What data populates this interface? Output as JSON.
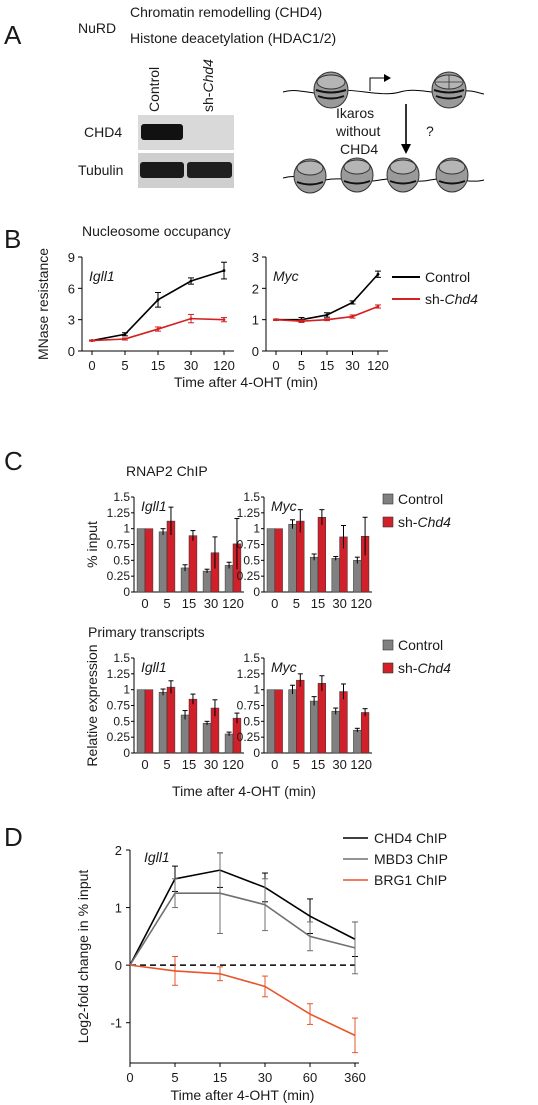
{
  "panels": {
    "A": {
      "letter": "A",
      "nurd_label": "NuRD",
      "nurd_lines": [
        "Chromatin remodelling (CHD4)",
        "Histone deacetylation (HDAC1/2)"
      ],
      "blot_lane_labels": [
        "Control",
        "sh-",
        "Chd4"
      ],
      "blot_row_labels": [
        "CHD4",
        "Tubulin"
      ],
      "diagram_text": [
        "Ikaros",
        "without",
        "CHD4"
      ],
      "question": "?"
    },
    "B": {
      "letter": "B",
      "title": "Nucleosome occupancy",
      "legend": [
        {
          "name": "Control",
          "color": "#000000"
        },
        {
          "name": "sh-",
          "name_italic": "Chd4",
          "color": "#d32020"
        }
      ]
    },
    "C": {
      "letter": "C",
      "title_top": "RNAP2 ChIP",
      "title_bottom": "Primary transcripts",
      "legend": [
        {
          "name": "Control",
          "color": "#808080"
        },
        {
          "name": "sh-",
          "name_italic": "Chd4",
          "color": "#d0202a"
        }
      ]
    },
    "D": {
      "letter": "D",
      "legend": [
        {
          "name": "CHD4 ChIP",
          "color": "#000000"
        },
        {
          "name": "MBD3 ChIP",
          "color": "#707070"
        },
        {
          "name": "BRG1 ChIP",
          "color": "#e8552a"
        }
      ]
    }
  },
  "chart_data": [
    {
      "id": "B-Igll1",
      "type": "line",
      "gene": "Igll1",
      "x": [
        "0",
        "5",
        "15",
        "30",
        "120"
      ],
      "ylabel": "MNase resistance",
      "xlabel": "Time after 4-OHT (min)",
      "yticks": [
        "0",
        "3",
        "6",
        "9"
      ],
      "ylim": [
        0,
        9
      ],
      "series": [
        {
          "name": "Control",
          "values": [
            1.0,
            1.6,
            4.9,
            6.7,
            7.7
          ],
          "errors": [
            0.05,
            0.15,
            0.7,
            0.3,
            0.8
          ]
        },
        {
          "name": "sh-Chd4",
          "values": [
            1.0,
            1.15,
            2.1,
            3.1,
            3.0
          ],
          "errors": [
            0.05,
            0.1,
            0.2,
            0.4,
            0.2
          ]
        }
      ]
    },
    {
      "id": "B-Myc",
      "type": "line",
      "gene": "Myc",
      "x": [
        "0",
        "5",
        "15",
        "30",
        "120"
      ],
      "xlabel": "Time after 4-OHT (min)",
      "yticks": [
        "0",
        "1",
        "2",
        "3"
      ],
      "ylim": [
        0,
        3
      ],
      "series": [
        {
          "name": "Control",
          "values": [
            1.0,
            1.0,
            1.15,
            1.55,
            2.45
          ],
          "errors": [
            0.02,
            0.07,
            0.07,
            0.05,
            0.1
          ]
        },
        {
          "name": "sh-Chd4",
          "values": [
            1.0,
            0.95,
            1.0,
            1.1,
            1.42
          ],
          "errors": [
            0.02,
            0.04,
            0.03,
            0.05,
            0.05
          ]
        }
      ]
    },
    {
      "id": "C-RNAP2-Igll1",
      "type": "bar",
      "gene": "Igll1",
      "categories": [
        "0",
        "5",
        "15",
        "30",
        "120"
      ],
      "ylabel": "% input",
      "yticks": [
        "0",
        "0.25",
        "0.5",
        "0.75",
        "1",
        "1.25",
        "1.5"
      ],
      "ylim": [
        0,
        1.5
      ],
      "series": [
        {
          "name": "Control",
          "values": [
            1.0,
            0.95,
            0.38,
            0.33,
            0.42
          ],
          "errors": [
            0,
            0.05,
            0.05,
            0.03,
            0.05
          ]
        },
        {
          "name": "sh-Chd4",
          "values": [
            1.0,
            1.12,
            0.89,
            0.62,
            0.76
          ],
          "errors": [
            0,
            0.22,
            0.08,
            0.25,
            0.4
          ]
        }
      ]
    },
    {
      "id": "C-RNAP2-Myc",
      "type": "bar",
      "gene": "Myc",
      "categories": [
        "0",
        "5",
        "15",
        "30",
        "120"
      ],
      "yticks": [
        "0",
        "0.25",
        "0.5",
        "0.75",
        "1",
        "1.25",
        "1.5"
      ],
      "ylim": [
        0,
        1.5
      ],
      "series": [
        {
          "name": "Control",
          "values": [
            1.0,
            1.07,
            0.55,
            0.53,
            0.5
          ],
          "errors": [
            0,
            0.07,
            0.05,
            0.03,
            0.05
          ]
        },
        {
          "name": "sh-Chd4",
          "values": [
            1.0,
            1.12,
            1.18,
            0.87,
            0.88
          ],
          "errors": [
            0,
            0.18,
            0.12,
            0.18,
            0.3
          ]
        }
      ]
    },
    {
      "id": "C-Primary-Igll1",
      "type": "bar",
      "gene": "Igll1",
      "categories": [
        "0",
        "5",
        "15",
        "30",
        "120"
      ],
      "ylabel": "Relative expression",
      "xlabel": "Time after 4-OHT (min)",
      "yticks": [
        "0",
        "0.25",
        "0.5",
        "0.75",
        "1",
        "1.25",
        "1.5"
      ],
      "ylim": [
        0,
        1.5
      ],
      "series": [
        {
          "name": "Control",
          "values": [
            1.0,
            0.96,
            0.6,
            0.47,
            0.3
          ],
          "errors": [
            0,
            0.05,
            0.07,
            0.03,
            0.03
          ]
        },
        {
          "name": "sh-Chd4",
          "values": [
            1.0,
            1.04,
            0.85,
            0.71,
            0.55
          ],
          "errors": [
            0,
            0.1,
            0.08,
            0.13,
            0.08
          ]
        }
      ]
    },
    {
      "id": "C-Primary-Myc",
      "type": "bar",
      "gene": "Myc",
      "categories": [
        "0",
        "5",
        "15",
        "30",
        "120"
      ],
      "xlabel": "Time after 4-OHT (min)",
      "yticks": [
        "0",
        "0.25",
        "0.5",
        "0.75",
        "1",
        "1.25",
        "1.5"
      ],
      "ylim": [
        0,
        1.5
      ],
      "series": [
        {
          "name": "Control",
          "values": [
            1.0,
            1.0,
            0.82,
            0.66,
            0.36
          ],
          "errors": [
            0,
            0.07,
            0.07,
            0.05,
            0.03
          ]
        },
        {
          "name": "sh-Chd4",
          "values": [
            1.0,
            1.15,
            1.1,
            0.97,
            0.64
          ],
          "errors": [
            0,
            0.1,
            0.12,
            0.12,
            0.06
          ]
        }
      ]
    },
    {
      "id": "D",
      "type": "line",
      "gene": "Igll1",
      "x": [
        "0",
        "5",
        "15",
        "30",
        "60",
        "360"
      ],
      "ylabel": "Log2-fold change in % input",
      "xlabel": "Time after 4-OHT (min)",
      "yticks": [
        "-1",
        "0",
        "1",
        "2"
      ],
      "ylim": [
        -1.7,
        2
      ],
      "series": [
        {
          "name": "CHD4 ChIP",
          "values": [
            0,
            1.5,
            1.65,
            1.35,
            0.85,
            0.45
          ],
          "errors": [
            0,
            0.22,
            0.3,
            0.25,
            0.3,
            0.3
          ]
        },
        {
          "name": "MBD3 ChIP",
          "values": [
            0,
            1.25,
            1.25,
            1.05,
            0.5,
            0.3
          ],
          "errors": [
            0,
            0.25,
            0.7,
            0.45,
            0.25,
            0.45
          ]
        },
        {
          "name": "BRG1 ChIP",
          "values": [
            0,
            -0.1,
            -0.15,
            -0.37,
            -0.85,
            -1.22
          ],
          "errors": [
            0,
            0.25,
            0.12,
            0.18,
            0.18,
            0.3
          ]
        }
      ]
    }
  ]
}
